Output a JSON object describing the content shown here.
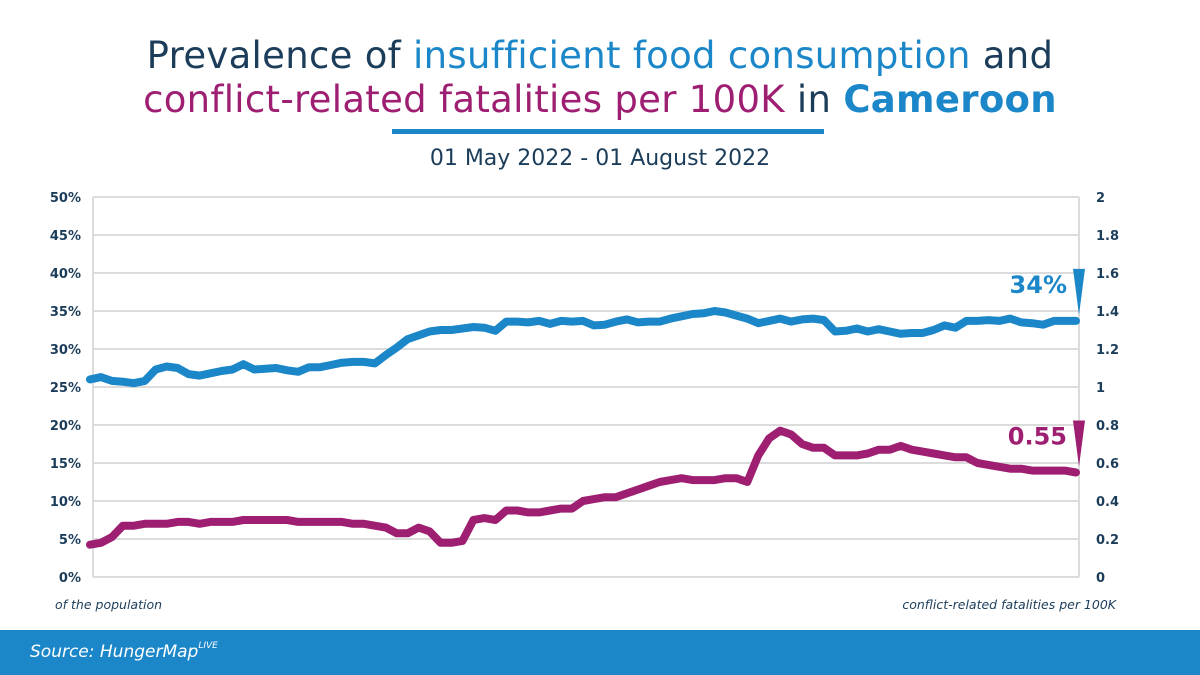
{
  "header": {
    "title_part1": "Prevalence of ",
    "title_part2": "insufficient food consumption",
    "title_part3": " and",
    "title_part4": "conflict-related fatalities per 100K",
    "title_part5": " in ",
    "title_part6": "Cameroon",
    "subtitle": "01 May 2022 - 01 August 2022"
  },
  "axis_notes": {
    "left": "of the population",
    "right": "conflict-related fatalities per 100K"
  },
  "footer": {
    "source_label": "Source: HungerMap",
    "source_sup": "LIVE"
  },
  "colors": {
    "food": "#1b87c9",
    "conflict": "#9e1f72",
    "text": "#1c3d5a",
    "grid": "#dcdcdc"
  },
  "chart_data": {
    "type": "line",
    "title": "Prevalence of insufficient food consumption and conflict-related fatalities per 100K in Cameroon",
    "subtitle": "01 May 2022 - 01 August 2022",
    "x_range": [
      "2022-05-01",
      "2022-08-01"
    ],
    "grid": true,
    "y_left": {
      "label": "of the population",
      "ylim": [
        0,
        50
      ],
      "ticks": [
        0,
        5,
        10,
        15,
        20,
        25,
        30,
        35,
        40,
        45,
        50
      ],
      "tick_labels": [
        "0%",
        "5%",
        "10%",
        "15%",
        "20%",
        "25%",
        "30%",
        "35%",
        "40%",
        "45%",
        "50%"
      ]
    },
    "y_right": {
      "label": "conflict-related fatalities per 100K",
      "ylim": [
        0,
        2
      ],
      "ticks": [
        0,
        0.2,
        0.4,
        0.6,
        0.8,
        1,
        1.2,
        1.4,
        1.6,
        1.8,
        2
      ],
      "tick_labels": [
        "0",
        "0.2",
        "0.4",
        "0.6",
        "0.8",
        "1",
        "1.2",
        "1.4",
        "1.6",
        "1.8",
        "2"
      ]
    },
    "series": [
      {
        "key": "food",
        "axis": "left",
        "end_label": "34%",
        "values": [
          26.0,
          26.3,
          25.8,
          25.7,
          25.5,
          25.8,
          27.3,
          27.7,
          27.5,
          26.7,
          26.5,
          26.8,
          27.1,
          27.3,
          28.0,
          27.3,
          27.4,
          27.5,
          27.2,
          27.0,
          27.6,
          27.6,
          27.9,
          28.2,
          28.3,
          28.3,
          28.1,
          29.2,
          30.2,
          31.3,
          31.8,
          32.3,
          32.5,
          32.5,
          32.7,
          32.9,
          32.8,
          32.4,
          33.6,
          33.6,
          33.5,
          33.7,
          33.3,
          33.7,
          33.6,
          33.7,
          33.1,
          33.2,
          33.6,
          33.9,
          33.5,
          33.6,
          33.6,
          34.0,
          34.3,
          34.6,
          34.7,
          35.0,
          34.8,
          34.4,
          34.0,
          33.4,
          33.7,
          34.0,
          33.6,
          33.9,
          34.0,
          33.8,
          32.3,
          32.4,
          32.7,
          32.3,
          32.6,
          32.3,
          32.0,
          32.1,
          32.1,
          32.5,
          33.1,
          32.8,
          33.7,
          33.7,
          33.8,
          33.7,
          34.0,
          33.5,
          33.4,
          33.2,
          33.7,
          33.7,
          33.7
        ]
      },
      {
        "key": "conflict",
        "axis": "right",
        "end_label": "0.55",
        "values": [
          0.17,
          0.18,
          0.21,
          0.27,
          0.27,
          0.28,
          0.28,
          0.28,
          0.29,
          0.29,
          0.28,
          0.29,
          0.29,
          0.29,
          0.3,
          0.3,
          0.3,
          0.3,
          0.3,
          0.29,
          0.29,
          0.29,
          0.29,
          0.29,
          0.28,
          0.28,
          0.27,
          0.26,
          0.23,
          0.23,
          0.26,
          0.24,
          0.18,
          0.18,
          0.19,
          0.3,
          0.31,
          0.3,
          0.35,
          0.35,
          0.34,
          0.34,
          0.35,
          0.36,
          0.36,
          0.4,
          0.41,
          0.42,
          0.42,
          0.44,
          0.46,
          0.48,
          0.5,
          0.51,
          0.52,
          0.51,
          0.51,
          0.51,
          0.52,
          0.52,
          0.5,
          0.64,
          0.73,
          0.77,
          0.75,
          0.7,
          0.68,
          0.68,
          0.64,
          0.64,
          0.64,
          0.65,
          0.67,
          0.67,
          0.69,
          0.67,
          0.66,
          0.65,
          0.64,
          0.63,
          0.63,
          0.6,
          0.59,
          0.58,
          0.57,
          0.57,
          0.56,
          0.56,
          0.56,
          0.56,
          0.55
        ]
      }
    ]
  }
}
